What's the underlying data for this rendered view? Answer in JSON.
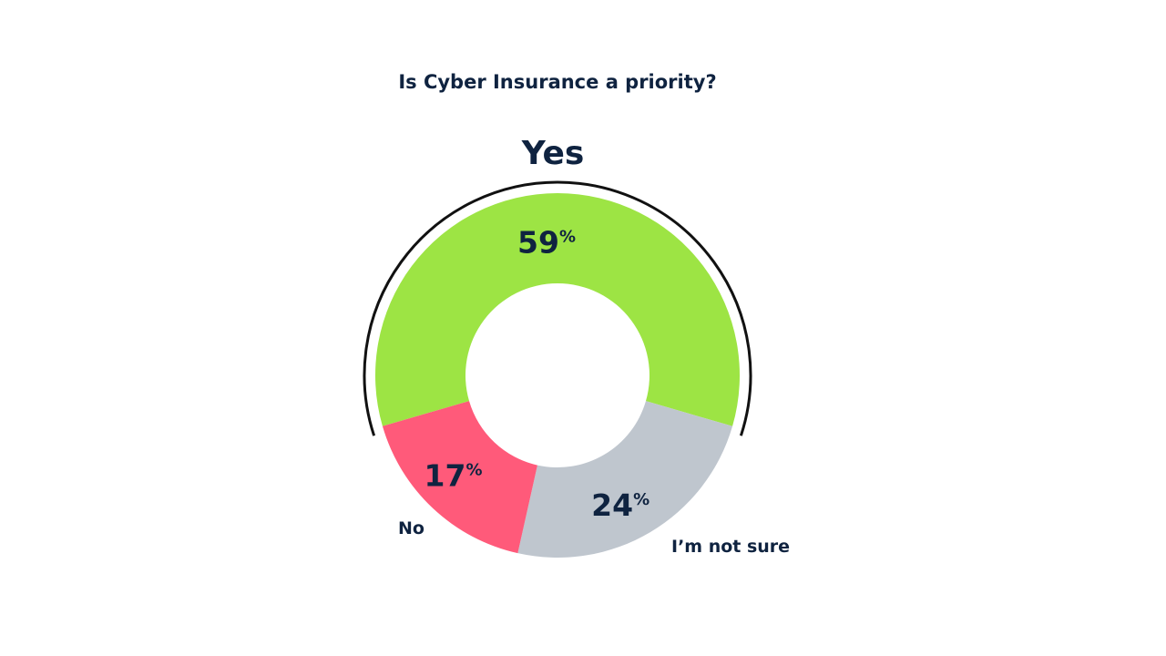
{
  "chart_data": {
    "type": "pie",
    "variant": "donut",
    "title": "Is Cyber Insurance a priority?",
    "highlight_label": "Yes",
    "categories": [
      "Yes",
      "I’m not sure",
      "No"
    ],
    "values": [
      59,
      24,
      17
    ],
    "value_labels": [
      "59",
      "24",
      "17"
    ],
    "percent_sign": "%",
    "category_labels": {
      "I’m not sure": "I’m not sure",
      "No": "No"
    },
    "colors": [
      "#9de444",
      "#bfc6ce",
      "#ff5a7a"
    ],
    "label_color": "#0f2340"
  }
}
